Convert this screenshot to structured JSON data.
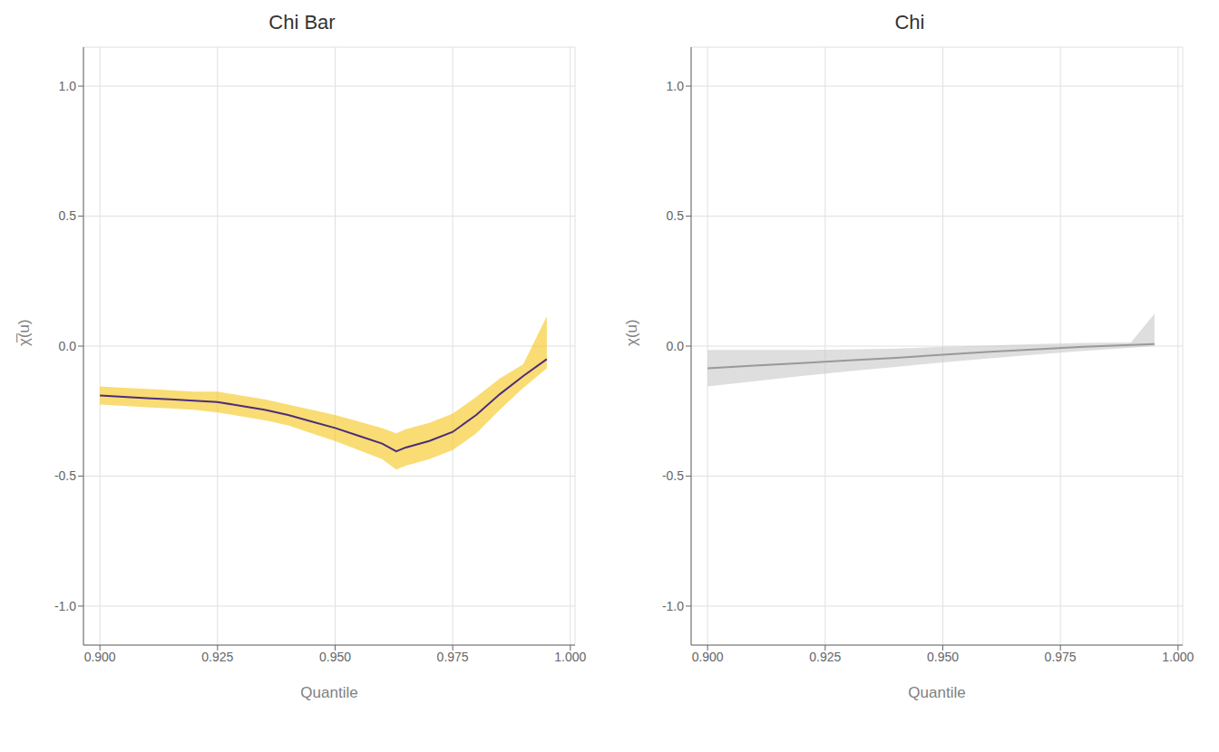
{
  "chart_data": [
    {
      "type": "line",
      "title": "Chi Bar",
      "xlabel": "Quantile",
      "ylabel": "χ̅(u)",
      "x": [
        0.9,
        0.905,
        0.91,
        0.915,
        0.92,
        0.925,
        0.93,
        0.935,
        0.94,
        0.945,
        0.95,
        0.955,
        0.96,
        0.963,
        0.965,
        0.97,
        0.975,
        0.98,
        0.985,
        0.99,
        0.995
      ],
      "series": [
        {
          "type": "area",
          "color": "#f5c518",
          "lower": [
            -0.225,
            -0.23,
            -0.235,
            -0.24,
            -0.245,
            -0.255,
            -0.27,
            -0.285,
            -0.305,
            -0.335,
            -0.365,
            -0.4,
            -0.435,
            -0.475,
            -0.46,
            -0.435,
            -0.4,
            -0.335,
            -0.245,
            -0.16,
            -0.085
          ],
          "upper": [
            -0.155,
            -0.16,
            -0.165,
            -0.17,
            -0.175,
            -0.175,
            -0.19,
            -0.205,
            -0.225,
            -0.245,
            -0.265,
            -0.29,
            -0.315,
            -0.335,
            -0.32,
            -0.295,
            -0.26,
            -0.195,
            -0.125,
            -0.07,
            0.115
          ]
        },
        {
          "type": "line",
          "color": "#4d2d7a",
          "values": [
            -0.19,
            -0.195,
            -0.2,
            -0.205,
            -0.21,
            -0.215,
            -0.23,
            -0.245,
            -0.265,
            -0.29,
            -0.315,
            -0.345,
            -0.375,
            -0.405,
            -0.39,
            -0.365,
            -0.33,
            -0.265,
            -0.185,
            -0.115,
            -0.05
          ]
        }
      ],
      "xlim": [
        0.8965,
        1.001
      ],
      "ylim": [
        -1.15,
        1.15
      ],
      "xticks": [
        {
          "value": 0.9,
          "label": "0.900"
        },
        {
          "value": 0.925,
          "label": "0.925"
        },
        {
          "value": 0.95,
          "label": "0.950"
        },
        {
          "value": 0.975,
          "label": "0.975"
        },
        {
          "value": 1.0,
          "label": "1.000"
        }
      ],
      "yticks": [
        {
          "value": -1.0,
          "label": "-1.0"
        },
        -0.5,
        {
          "value": 0.0,
          "label": "0.0"
        },
        0.5,
        {
          "value": 1.0,
          "label": "1.0"
        }
      ],
      "grid": true
    },
    {
      "type": "line",
      "title": "Chi",
      "xlabel": "Quantile",
      "ylabel": "χ(u)",
      "x": [
        0.9,
        0.91,
        0.92,
        0.93,
        0.94,
        0.95,
        0.96,
        0.97,
        0.98,
        0.99,
        0.995
      ],
      "series": [
        {
          "type": "area",
          "color": "#c8c8c8",
          "lower": [
            -0.155,
            -0.135,
            -0.115,
            -0.097,
            -0.08,
            -0.063,
            -0.047,
            -0.032,
            -0.018,
            -0.006,
            0.0
          ],
          "upper": [
            -0.015,
            -0.015,
            -0.015,
            -0.013,
            -0.01,
            -0.003,
            0.003,
            0.008,
            0.012,
            0.014,
            0.125
          ]
        },
        {
          "type": "line",
          "color": "#999999",
          "values": [
            -0.085,
            -0.075,
            -0.065,
            -0.055,
            -0.045,
            -0.033,
            -0.022,
            -0.012,
            -0.003,
            0.004,
            0.008
          ]
        }
      ],
      "xlim": [
        0.8965,
        1.001
      ],
      "ylim": [
        -1.15,
        1.15
      ],
      "xticks": [
        {
          "value": 0.9,
          "label": "0.900"
        },
        {
          "value": 0.925,
          "label": "0.925"
        },
        {
          "value": 0.95,
          "label": "0.950"
        },
        {
          "value": 0.975,
          "label": "0.975"
        },
        {
          "value": 1.0,
          "label": "1.000"
        }
      ],
      "yticks": [
        {
          "value": -1.0,
          "label": "-1.0"
        },
        -0.5,
        {
          "value": 0.0,
          "label": "0.0"
        },
        0.5,
        {
          "value": 1.0,
          "label": "1.0"
        }
      ],
      "grid": true
    }
  ]
}
